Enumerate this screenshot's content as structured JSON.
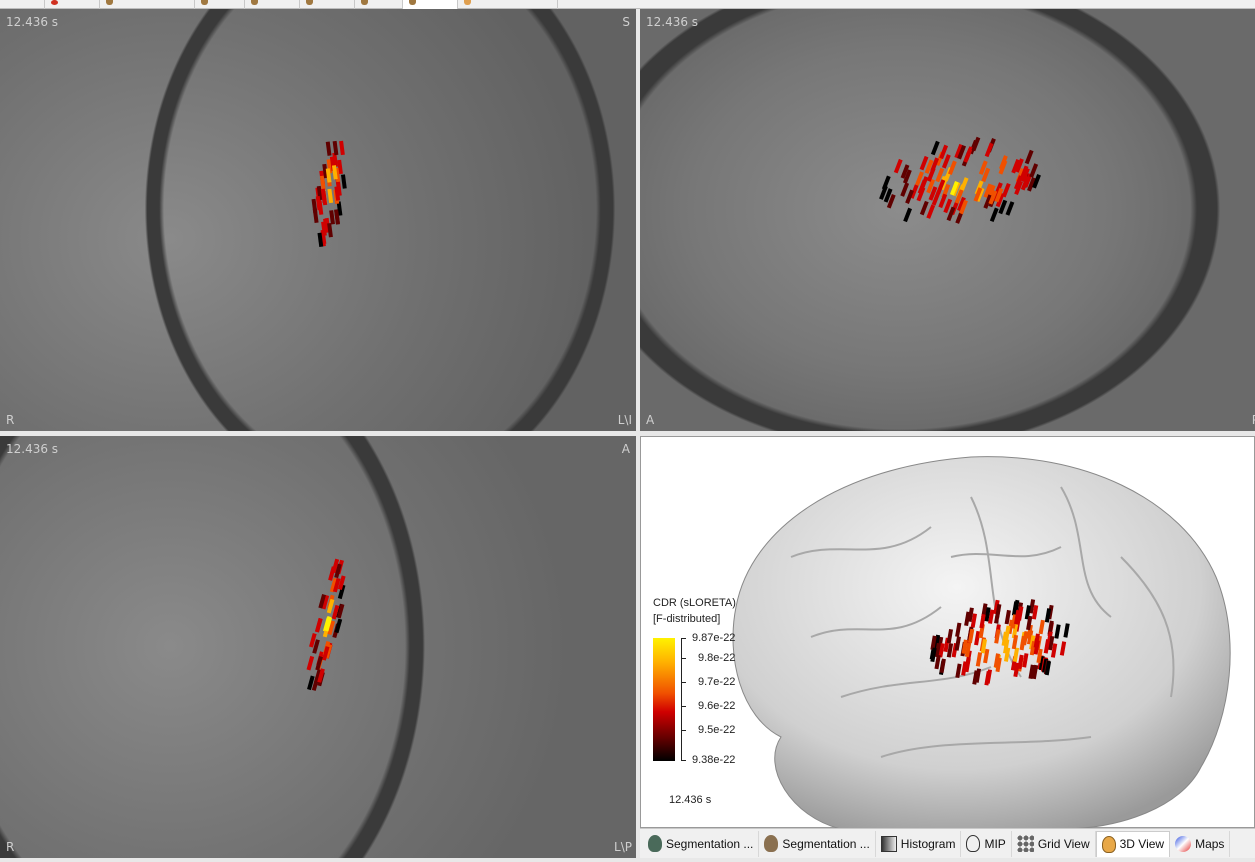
{
  "top_tabs": [
    "",
    "",
    "",
    "",
    "",
    "",
    "",
    "",
    "",
    ""
  ],
  "views": {
    "coronal": {
      "time": "12.436 s",
      "top_right": "S",
      "bottom_left": "R",
      "bottom_right": "L\\I"
    },
    "sagittal": {
      "time": "12.436 s",
      "bottom_left": "A",
      "bottom_right": "P"
    },
    "axial": {
      "time": "12.436 s",
      "top_right": "A",
      "bottom_left": "R",
      "bottom_right": "L\\P"
    }
  },
  "view3d": {
    "colorbar": {
      "title_line1": "CDR (sLORETA)",
      "title_line2": "[F-distributed]",
      "ticks": [
        "9.87e-22",
        "9.8e-22",
        "9.7e-22",
        "9.6e-22",
        "9.5e-22",
        "9.38e-22"
      ],
      "colors": [
        "#fff200",
        "#ffb000",
        "#f05000",
        "#d00000",
        "#600000",
        "#000000"
      ]
    },
    "time": "12.436 s"
  },
  "bottom_tabs": [
    {
      "label": "Segmentation ...",
      "icon": "head-green-icon"
    },
    {
      "label": "Segmentation ...",
      "icon": "head-orange-icon"
    },
    {
      "label": "Histogram",
      "icon": "histogram-icon"
    },
    {
      "label": "MIP",
      "icon": "head-outline-icon"
    },
    {
      "label": "Grid View",
      "icon": "grid-icon"
    },
    {
      "label": "3D View",
      "icon": "head-3d-icon",
      "active": true
    },
    {
      "label": "Maps",
      "icon": "sphere-icon"
    }
  ]
}
